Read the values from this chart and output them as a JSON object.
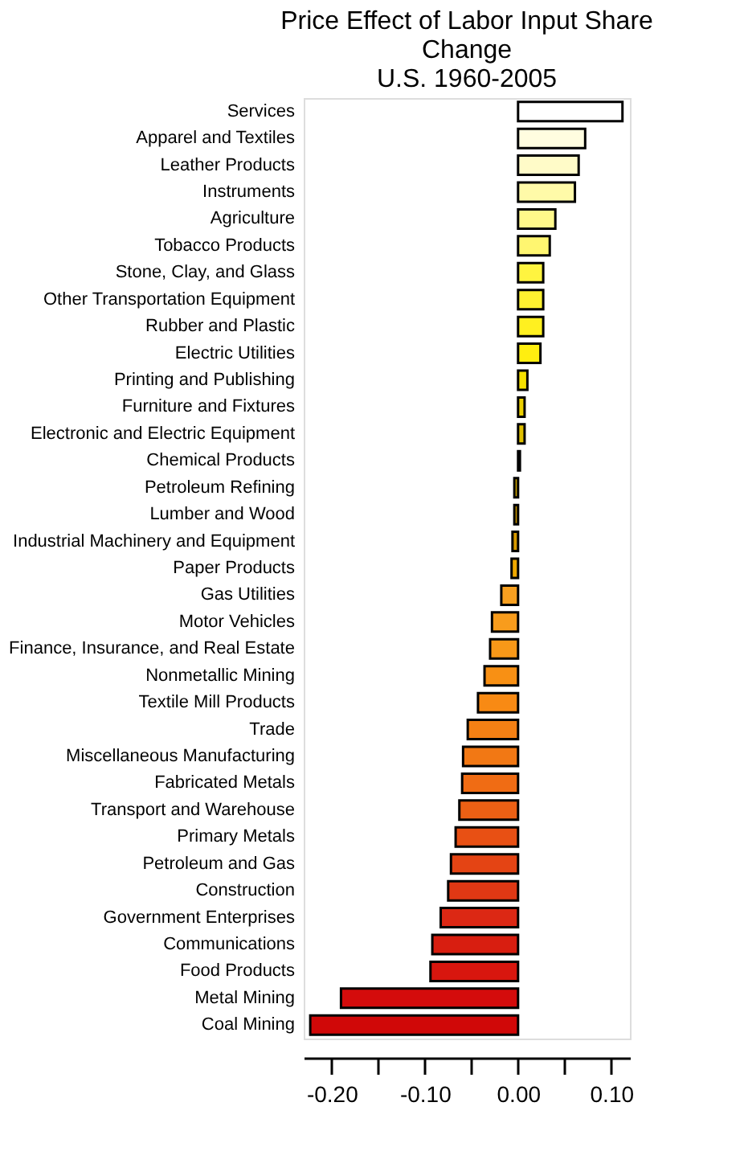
{
  "chart_data": {
    "type": "bar",
    "orientation": "horizontal",
    "title": "Price Effect of Labor Input Share\nChange\nU.S. 1960-2005",
    "categories": [
      "Services",
      "Apparel and Textiles",
      "Leather Products",
      "Instruments",
      "Agriculture",
      "Tobacco Products",
      "Stone, Clay, and Glass",
      "Other Transportation Equipment",
      "Rubber and Plastic",
      "Electric Utilities",
      "Printing and Publishing",
      "Furniture and Fixtures",
      "Electronic and Electric Equipment",
      "Chemical Products",
      "Petroleum Refining",
      "Lumber and Wood",
      "Industrial Machinery and Equipment",
      "Paper Products",
      "Gas Utilities",
      "Motor Vehicles",
      "Finance, Insurance, and Real Estate",
      "Nonmetallic Mining",
      "Textile Mill Products",
      "Trade",
      "Miscellaneous Manufacturing",
      "Fabricated Metals",
      "Transport and Warehouse",
      "Primary Metals",
      "Petroleum and Gas",
      "Construction",
      "Government Enterprises",
      "Communications",
      "Food Products",
      "Metal Mining",
      "Coal Mining"
    ],
    "values": [
      0.112,
      0.072,
      0.065,
      0.061,
      0.04,
      0.034,
      0.027,
      0.027,
      0.027,
      0.024,
      0.01,
      0.007,
      0.007,
      0.002,
      -0.004,
      -0.004,
      -0.006,
      -0.007,
      -0.018,
      -0.028,
      -0.03,
      -0.036,
      -0.043,
      -0.054,
      -0.059,
      -0.06,
      -0.063,
      -0.067,
      -0.072,
      -0.075,
      -0.083,
      -0.092,
      -0.094,
      -0.19,
      -0.223
    ],
    "colors": [
      "#ffffff",
      "#fffde0",
      "#fffbc8",
      "#fffaa8",
      "#fff88a",
      "#fff670",
      "#fff440",
      "#fff230",
      "#fff020",
      "#ffee10",
      "#f5e000",
      "#ecd000",
      "#e0c000",
      "#d4b000",
      "#c8a000",
      "#c09000",
      "#d89a00",
      "#f0a800",
      "#f8a020",
      "#f89c1c",
      "#f89818",
      "#f89014",
      "#f88a14",
      "#f48014",
      "#f27814",
      "#f06c14",
      "#ec6014",
      "#e85014",
      "#e44414",
      "#e03814",
      "#dc2814",
      "#d81e10",
      "#d8160e",
      "#d40c0c",
      "#d00808"
    ],
    "xlim": [
      -0.23,
      0.12
    ],
    "xticks": [
      {
        "value": -0.2,
        "label": "-0.20"
      },
      {
        "value": -0.15,
        "label": null
      },
      {
        "value": -0.1,
        "label": "-0.10"
      },
      {
        "value": -0.05,
        "label": null
      },
      {
        "value": 0.0,
        "label": "0.00"
      },
      {
        "value": 0.05,
        "label": null
      },
      {
        "value": 0.1,
        "label": "0.10"
      }
    ],
    "tick_labels": "x",
    "grid": false
  }
}
